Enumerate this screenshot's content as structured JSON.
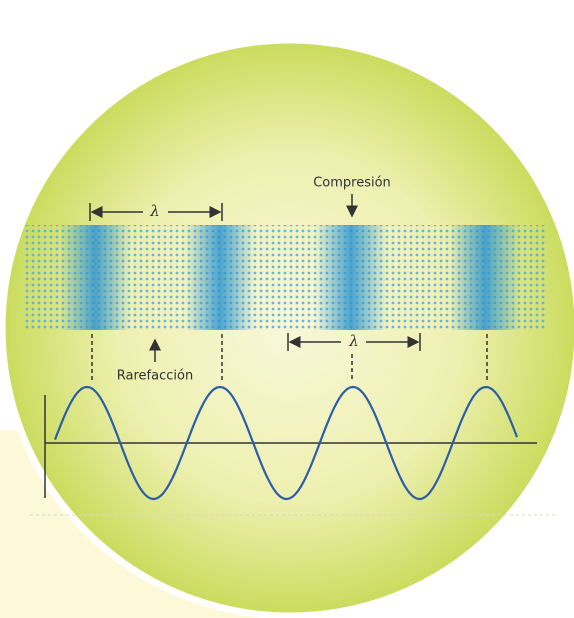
{
  "labels": {
    "compression": "Compresión",
    "rarefaction": "Rarefacción",
    "wavelength_top": "λ",
    "wavelength_bottom": "λ"
  }
}
